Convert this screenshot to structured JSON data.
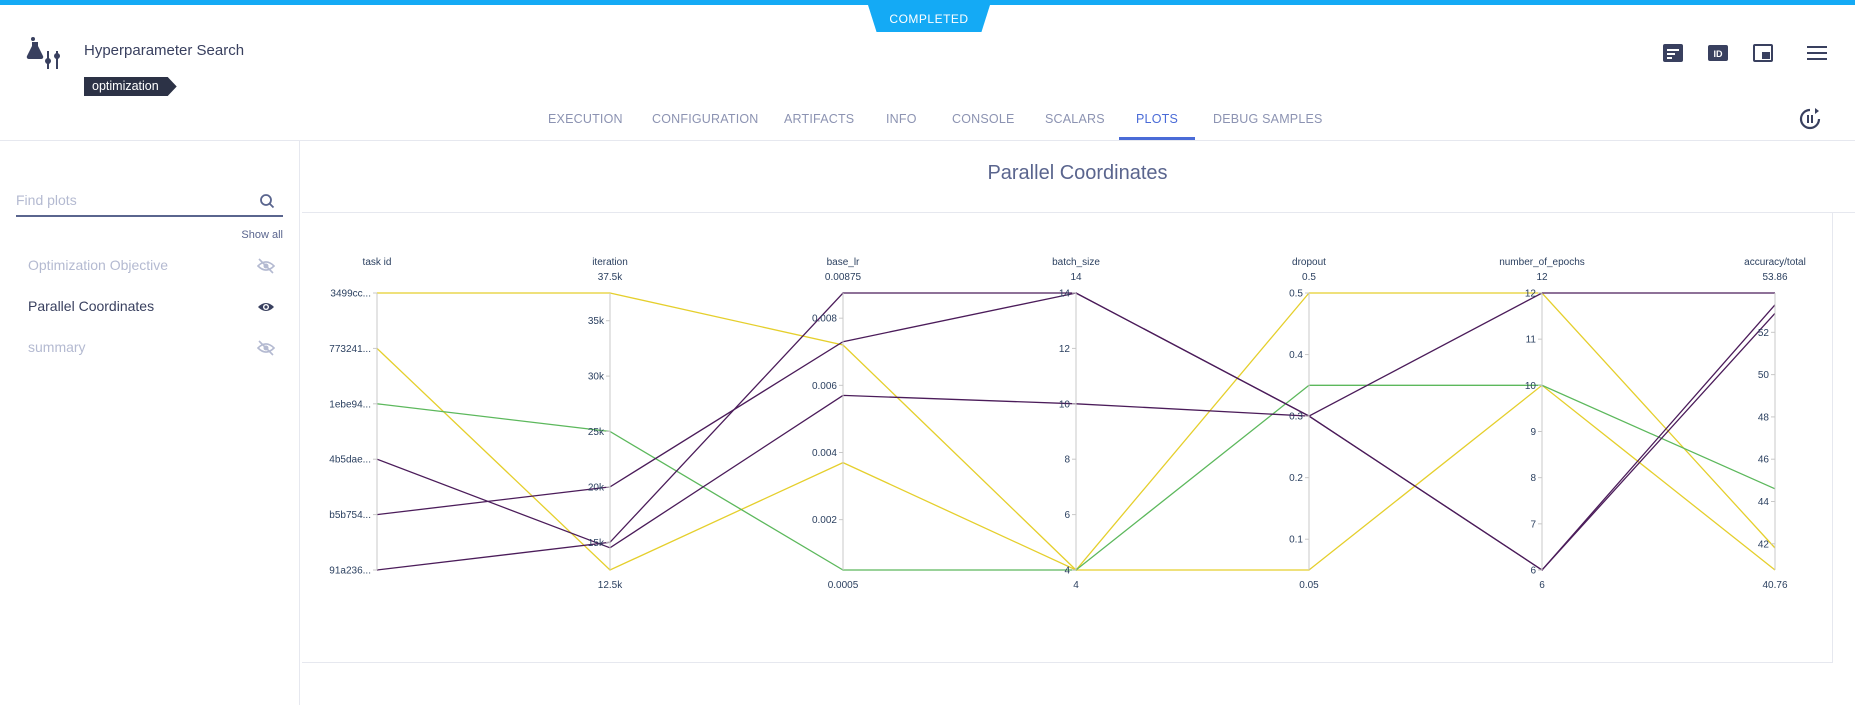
{
  "status": "COMPLETED",
  "header": {
    "title": "Hyperparameter Search",
    "tag": "optimization"
  },
  "tabs": [
    {
      "label": "EXECUTION",
      "active": false
    },
    {
      "label": "CONFIGURATION",
      "active": false
    },
    {
      "label": "ARTIFACTS",
      "active": false
    },
    {
      "label": "INFO",
      "active": false
    },
    {
      "label": "CONSOLE",
      "active": false
    },
    {
      "label": "SCALARS",
      "active": false
    },
    {
      "label": "PLOTS",
      "active": true
    },
    {
      "label": "DEBUG SAMPLES",
      "active": false
    }
  ],
  "toolbar_icons": [
    "details-icon",
    "id-icon",
    "panel-layout-icon",
    "menu-icon"
  ],
  "sidebar": {
    "search_placeholder": "Find plots",
    "show_all": "Show all",
    "items": [
      {
        "label": "Optimization Objective",
        "visible": false
      },
      {
        "label": "Parallel Coordinates",
        "visible": true
      },
      {
        "label": "summary",
        "visible": false
      }
    ]
  },
  "content": {
    "title": "Parallel Coordinates"
  },
  "colors": {
    "accent": "#4a6bd7",
    "status": "#14aaf5",
    "yellow": "#e5cf2c",
    "green": "#5cb85c",
    "purple": "#4b1c5a"
  },
  "chart_data": {
    "type": "parallel_coordinates",
    "dimensions": [
      {
        "name": "task id",
        "kind": "categorical",
        "categories": [
          "91a236...",
          "b5b754...",
          "4b5dae...",
          "1ebe94...",
          "773241...",
          "3499cc..."
        ]
      },
      {
        "name": "iteration",
        "range": [
          12500,
          37500
        ],
        "range_labels": [
          "12.5k",
          "37.5k"
        ],
        "ticks": [
          15000,
          20000,
          25000,
          30000,
          35000
        ],
        "tick_labels": [
          "15k",
          "20k",
          "25k",
          "30k",
          "35k"
        ]
      },
      {
        "name": "base_lr",
        "range": [
          0.0005,
          0.00875
        ],
        "range_labels": [
          "0.0005",
          "0.00875"
        ],
        "ticks": [
          0.002,
          0.004,
          0.006,
          0.008
        ],
        "tick_labels": [
          "0.002",
          "0.004",
          "0.006",
          "0.008"
        ]
      },
      {
        "name": "batch_size",
        "range": [
          4,
          14
        ],
        "range_labels": [
          "4",
          "14"
        ],
        "ticks": [
          4,
          6,
          8,
          10,
          12,
          14
        ],
        "tick_labels": [
          "4",
          "6",
          "8",
          "10",
          "12",
          "14"
        ]
      },
      {
        "name": "dropout",
        "range": [
          0.05,
          0.5
        ],
        "range_labels": [
          "0.05",
          "0.5"
        ],
        "ticks": [
          0.1,
          0.2,
          0.3,
          0.4,
          0.5
        ],
        "tick_labels": [
          "0.1",
          "0.2",
          "0.3",
          "0.4",
          "0.5"
        ]
      },
      {
        "name": "number_of_epochs",
        "range": [
          6,
          12
        ],
        "range_labels": [
          "6",
          "12"
        ],
        "ticks": [
          6,
          7,
          8,
          9,
          10,
          11,
          12
        ],
        "tick_labels": [
          "6",
          "7",
          "8",
          "9",
          "10",
          "11",
          "12"
        ]
      },
      {
        "name": "accuracy/total",
        "range": [
          40.76,
          53.86
        ],
        "range_labels": [
          "40.76",
          "53.86"
        ],
        "ticks": [
          42,
          44,
          46,
          48,
          50,
          52
        ],
        "tick_labels": [
          "42",
          "44",
          "46",
          "48",
          "50",
          "52"
        ]
      }
    ],
    "lines": [
      {
        "color": "yellow",
        "values": [
          5,
          37500,
          0.0072,
          4,
          0.5,
          12,
          41.8
        ]
      },
      {
        "color": "yellow",
        "values": [
          4,
          12500,
          0.0037,
          4,
          0.05,
          10,
          40.76
        ]
      },
      {
        "color": "green",
        "values": [
          3,
          25000,
          0.0005,
          4,
          0.35,
          10,
          44.6
        ]
      },
      {
        "color": "purple",
        "values": [
          2,
          14500,
          0.0057,
          10,
          0.3,
          12,
          53.86
        ]
      },
      {
        "color": "purple",
        "values": [
          1,
          20000,
          0.0073,
          14,
          0.3,
          6,
          53.3
        ]
      },
      {
        "color": "purple",
        "values": [
          0,
          15000,
          0.00875,
          14,
          0.3,
          6,
          52.9
        ]
      }
    ]
  }
}
